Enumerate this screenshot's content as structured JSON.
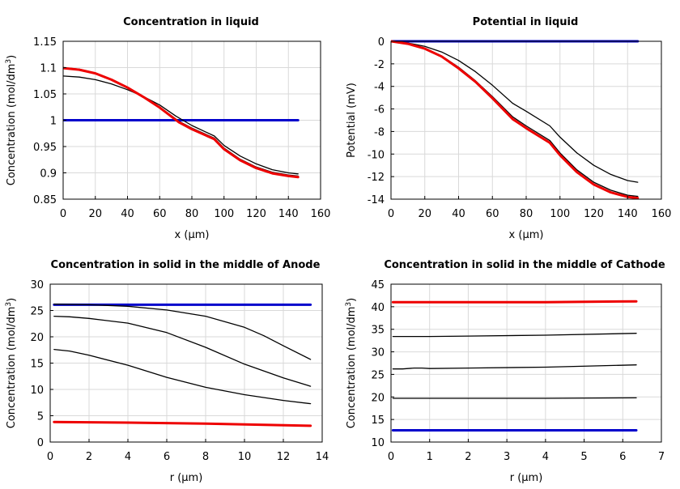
{
  "chart_data": [
    {
      "type": "line",
      "title": "Concentration in liquid",
      "xlabel": "x (µm)",
      "ylabel": "Concentration (mol/dm³)",
      "ylabel_main": "Concentration (mol/dm",
      "ylabel_sup": "3",
      "ylabel_tail": ")",
      "xlim": [
        0,
        160
      ],
      "ylim": [
        0.85,
        1.15
      ],
      "xticks": [
        0,
        20,
        40,
        60,
        80,
        100,
        120,
        140,
        160
      ],
      "yticks": [
        0.85,
        0.9,
        0.95,
        1,
        1.05,
        1.1,
        1.15
      ],
      "xtick_labels": [
        "0",
        "20",
        "40",
        "60",
        "80",
        "100",
        "120",
        "140",
        "160"
      ],
      "ytick_labels": [
        "0.85",
        "0.9",
        "0.95",
        "1",
        "1.05",
        "1.1",
        "1.15"
      ],
      "grid": true,
      "series": [
        {
          "name": "blue",
          "color": "#0000cc",
          "width": 3,
          "x": [
            0,
            146
          ],
          "y": [
            1.0,
            1.0
          ]
        },
        {
          "name": "black-1",
          "color": "#000000",
          "width": 1.3,
          "x": [
            0,
            10,
            20,
            30,
            40,
            50,
            60,
            70,
            80,
            94,
            100,
            110,
            120,
            130,
            140,
            146
          ],
          "y": [
            1.084,
            1.082,
            1.077,
            1.069,
            1.058,
            1.045,
            1.029,
            1.008,
            0.99,
            0.97,
            0.952,
            0.932,
            0.917,
            0.906,
            0.9,
            0.898
          ]
        },
        {
          "name": "black-2",
          "color": "#000000",
          "width": 1.3,
          "x": [
            0,
            10,
            20,
            30,
            40,
            50,
            60,
            72,
            80,
            94,
            100,
            110,
            120,
            130,
            140,
            146
          ],
          "y": [
            1.1,
            1.097,
            1.09,
            1.078,
            1.063,
            1.045,
            1.025,
            0.998,
            0.985,
            0.966,
            0.947,
            0.926,
            0.911,
            0.901,
            0.896,
            0.894
          ]
        },
        {
          "name": "red",
          "color": "#ee0000",
          "width": 3,
          "x": [
            0,
            10,
            20,
            30,
            40,
            50,
            60,
            72,
            80,
            94,
            100,
            110,
            120,
            130,
            140,
            146
          ],
          "y": [
            1.099,
            1.096,
            1.089,
            1.077,
            1.062,
            1.044,
            1.024,
            0.996,
            0.983,
            0.964,
            0.945,
            0.924,
            0.909,
            0.899,
            0.894,
            0.892
          ]
        }
      ]
    },
    {
      "type": "line",
      "title": "Potential in liquid",
      "xlabel": "x (µm)",
      "ylabel": "Potential (mV)",
      "xlim": [
        0,
        160
      ],
      "ylim": [
        -14,
        0
      ],
      "xticks": [
        0,
        20,
        40,
        60,
        80,
        100,
        120,
        140,
        160
      ],
      "yticks": [
        -14,
        -12,
        -10,
        -8,
        -6,
        -4,
        -2,
        0
      ],
      "xtick_labels": [
        "0",
        "20",
        "40",
        "60",
        "80",
        "100",
        "120",
        "140",
        "160"
      ],
      "ytick_labels": [
        "-14",
        "-12",
        "-10",
        "-8",
        "-6",
        "-4",
        "-2",
        "0"
      ],
      "grid": true,
      "series": [
        {
          "name": "blue",
          "color": "#0000cc",
          "width": 3,
          "x": [
            0,
            146
          ],
          "y": [
            0,
            0
          ]
        },
        {
          "name": "black-1",
          "color": "#000000",
          "width": 1.3,
          "x": [
            0,
            10,
            20,
            30,
            40,
            50,
            60,
            72,
            80,
            94,
            100,
            110,
            120,
            130,
            140,
            146
          ],
          "y": [
            0,
            -0.15,
            -0.45,
            -0.95,
            -1.7,
            -2.7,
            -3.9,
            -5.5,
            -6.2,
            -7.5,
            -8.5,
            -9.9,
            -11.0,
            -11.8,
            -12.35,
            -12.5
          ]
        },
        {
          "name": "black-2",
          "color": "#000000",
          "width": 1.3,
          "x": [
            0,
            10,
            20,
            30,
            40,
            50,
            60,
            72,
            80,
            94,
            100,
            110,
            120,
            130,
            140,
            146
          ],
          "y": [
            0,
            -0.2,
            -0.6,
            -1.3,
            -2.3,
            -3.5,
            -4.9,
            -6.7,
            -7.5,
            -8.8,
            -9.9,
            -11.4,
            -12.5,
            -13.2,
            -13.65,
            -13.75
          ]
        },
        {
          "name": "red",
          "color": "#ee0000",
          "width": 3,
          "x": [
            0,
            10,
            20,
            30,
            40,
            50,
            60,
            72,
            80,
            94,
            100,
            110,
            120,
            130,
            140,
            146
          ],
          "y": [
            0,
            -0.22,
            -0.65,
            -1.35,
            -2.4,
            -3.6,
            -5.05,
            -6.9,
            -7.7,
            -9.0,
            -10.1,
            -11.6,
            -12.7,
            -13.4,
            -13.8,
            -13.9
          ]
        }
      ]
    },
    {
      "type": "line",
      "title": "Concentration in solid in the middle of Anode",
      "xlabel": "r (µm)",
      "ylabel": "Concentration (mol/dm³)",
      "ylabel_main": "Concentration (mol/dm",
      "ylabel_sup": "3",
      "ylabel_tail": ")",
      "xlim": [
        0,
        14
      ],
      "ylim": [
        0,
        30
      ],
      "xticks": [
        0,
        2,
        4,
        6,
        8,
        10,
        12,
        14
      ],
      "yticks": [
        0,
        5,
        10,
        15,
        20,
        25,
        30
      ],
      "xtick_labels": [
        "0",
        "2",
        "4",
        "6",
        "8",
        "10",
        "12",
        "14"
      ],
      "ytick_labels": [
        "0",
        "5",
        "10",
        "15",
        "20",
        "25",
        "30"
      ],
      "grid": true,
      "series": [
        {
          "name": "blue",
          "color": "#0000cc",
          "width": 3,
          "x": [
            0.2,
            13.4
          ],
          "y": [
            26.1,
            26.1
          ]
        },
        {
          "name": "black-1",
          "color": "#000000",
          "width": 1.3,
          "x": [
            0.2,
            2,
            4,
            6,
            8,
            10,
            11,
            12,
            13.4
          ],
          "y": [
            26.2,
            26.1,
            25.8,
            25.1,
            23.9,
            21.8,
            20.2,
            18.3,
            15.7
          ]
        },
        {
          "name": "black-2",
          "color": "#000000",
          "width": 1.3,
          "x": [
            0.2,
            1,
            2,
            4,
            6,
            8,
            10,
            12,
            13.4
          ],
          "y": [
            23.9,
            23.8,
            23.5,
            22.6,
            20.8,
            18.0,
            14.8,
            12.2,
            10.6
          ]
        },
        {
          "name": "black-3",
          "color": "#000000",
          "width": 1.3,
          "x": [
            0.2,
            1,
            2,
            4,
            6,
            8,
            10,
            12,
            13.4
          ],
          "y": [
            17.6,
            17.3,
            16.5,
            14.6,
            12.3,
            10.4,
            9.0,
            7.9,
            7.3
          ]
        },
        {
          "name": "red",
          "color": "#ee0000",
          "width": 3,
          "x": [
            0.2,
            4,
            8,
            13.4
          ],
          "y": [
            3.8,
            3.7,
            3.5,
            3.1
          ]
        }
      ]
    },
    {
      "type": "line",
      "title": "Concentration in solid in the middle of Cathode",
      "xlabel": "r (µm)",
      "ylabel": "Concentration (mol/dm³)",
      "ylabel_main": "Concentration (mol/dm",
      "ylabel_sup": "3",
      "ylabel_tail": ")",
      "xlim": [
        0,
        7
      ],
      "ylim": [
        10,
        45
      ],
      "xticks": [
        0,
        1,
        2,
        3,
        4,
        5,
        6,
        7
      ],
      "yticks": [
        10,
        15,
        20,
        25,
        30,
        35,
        40,
        45
      ],
      "xtick_labels": [
        "0",
        "1",
        "2",
        "3",
        "4",
        "5",
        "6",
        "7"
      ],
      "ytick_labels": [
        "10",
        "15",
        "20",
        "25",
        "30",
        "35",
        "40",
        "45"
      ],
      "grid": true,
      "series": [
        {
          "name": "blue",
          "color": "#0000cc",
          "width": 3,
          "x": [
            0.05,
            6.35
          ],
          "y": [
            12.6,
            12.6
          ]
        },
        {
          "name": "black-1",
          "color": "#000000",
          "width": 1.3,
          "x": [
            0.05,
            2,
            4,
            6.35
          ],
          "y": [
            19.7,
            19.7,
            19.7,
            19.8
          ]
        },
        {
          "name": "black-2",
          "color": "#000000",
          "width": 1.3,
          "x": [
            0.05,
            0.3,
            0.6,
            0.8,
            1,
            2,
            4,
            6.35
          ],
          "y": [
            26.2,
            26.2,
            26.4,
            26.4,
            26.3,
            26.4,
            26.6,
            27.1
          ]
        },
        {
          "name": "black-3",
          "color": "#000000",
          "width": 1.3,
          "x": [
            0.05,
            1,
            2,
            4,
            6.35
          ],
          "y": [
            33.4,
            33.4,
            33.5,
            33.7,
            34.1
          ]
        },
        {
          "name": "red",
          "color": "#ee0000",
          "width": 3,
          "x": [
            0.05,
            2,
            4,
            6.35
          ],
          "y": [
            41.0,
            41.0,
            41.0,
            41.2
          ]
        }
      ]
    }
  ]
}
